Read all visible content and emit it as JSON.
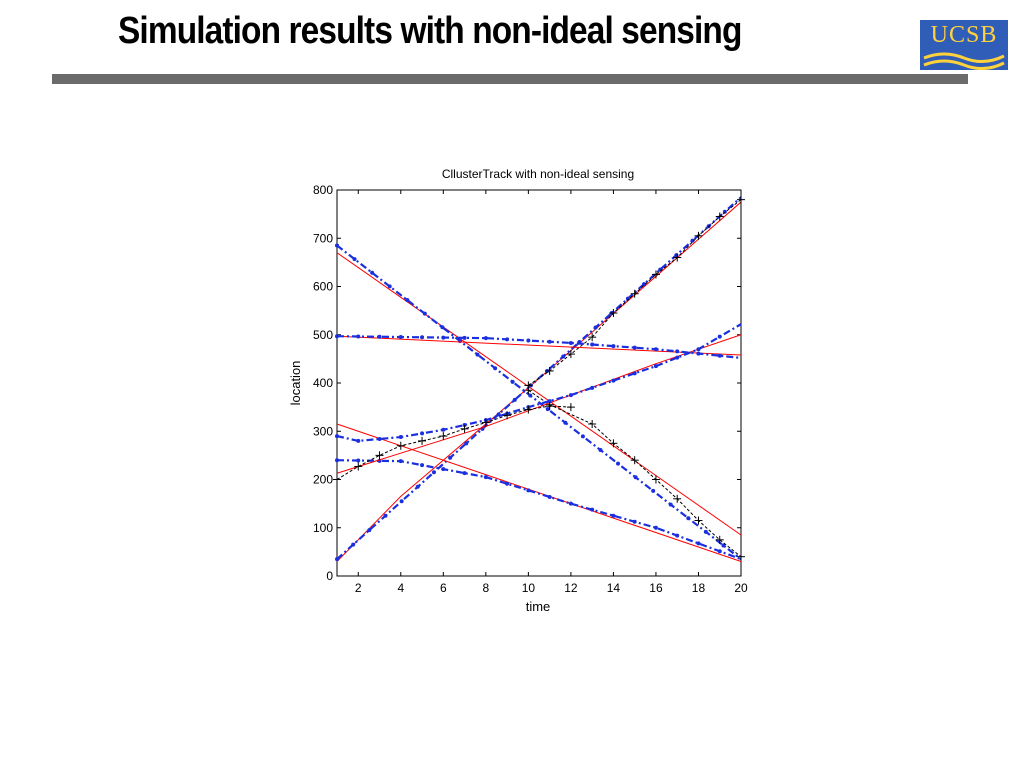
{
  "slide": {
    "title": "Simulation results with non-ideal sensing",
    "logo_text": "UCSB",
    "colors": {
      "rule": "#6b6b6b",
      "logo_bg": "#2f5db8",
      "logo_fg": "#ffd23c"
    }
  },
  "chart_data": {
    "type": "line",
    "title": "CllusterTrack with non-ideal sensing",
    "xlabel": "time",
    "ylabel": "location",
    "xlim": [
      1,
      20
    ],
    "ylim": [
      0,
      800
    ],
    "xticks": [
      2,
      4,
      6,
      8,
      10,
      12,
      14,
      16,
      18,
      20
    ],
    "yticks": [
      0,
      100,
      200,
      300,
      400,
      500,
      600,
      700,
      800
    ],
    "grid": false,
    "legend": "none",
    "series": [
      {
        "style": "true",
        "color": "#ff0000",
        "x": [
          1,
          20
        ],
        "y": [
          670,
          85
        ]
      },
      {
        "style": "estimate",
        "color": "#1a2fe0",
        "x": [
          1,
          20
        ],
        "y": [
          685,
          35
        ]
      },
      {
        "style": "track",
        "color": "#000000",
        "x": [
          10,
          11,
          13,
          14,
          15,
          16,
          17,
          18,
          19,
          20
        ],
        "y": [
          385,
          355,
          315,
          275,
          240,
          200,
          160,
          115,
          75,
          40
        ]
      },
      {
        "style": "true",
        "color": "#ff0000",
        "x": [
          1,
          4,
          10,
          20
        ],
        "y": [
          30,
          165,
          390,
          775
        ]
      },
      {
        "style": "estimate",
        "color": "#1a2fe0",
        "x": [
          1,
          20
        ],
        "y": [
          35,
          785
        ]
      },
      {
        "style": "track",
        "color": "#000000",
        "x": [
          10,
          11,
          12,
          13,
          14,
          15,
          16,
          17,
          18,
          19,
          20
        ],
        "y": [
          395,
          425,
          460,
          495,
          545,
          585,
          625,
          660,
          705,
          745,
          780
        ]
      },
      {
        "style": "true",
        "color": "#ff0000",
        "x": [
          1,
          20
        ],
        "y": [
          497,
          458
        ]
      },
      {
        "style": "estimate",
        "color": "#1a2fe0",
        "x": [
          1,
          8,
          12,
          16,
          20
        ],
        "y": [
          497,
          493,
          483,
          470,
          452
        ]
      },
      {
        "style": "true",
        "color": "#ff0000",
        "x": [
          1,
          20
        ],
        "y": [
          315,
          30
        ]
      },
      {
        "style": "estimate",
        "color": "#1a2fe0",
        "x": [
          1,
          4,
          8,
          12,
          16,
          20
        ],
        "y": [
          240,
          238,
          205,
          150,
          100,
          35
        ]
      },
      {
        "style": "true",
        "color": "#ff0000",
        "x": [
          1,
          8,
          12,
          16,
          20
        ],
        "y": [
          213,
          310,
          375,
          440,
          500
        ]
      },
      {
        "style": "estimate",
        "color": "#1a2fe0",
        "x": [
          1,
          2,
          4,
          6,
          8,
          10,
          12,
          14,
          16,
          18,
          20
        ],
        "y": [
          290,
          280,
          288,
          303,
          323,
          350,
          375,
          405,
          435,
          470,
          522
        ]
      },
      {
        "style": "track",
        "color": "#000000",
        "x": [
          1,
          2,
          3,
          4,
          5,
          6,
          7,
          8,
          9,
          10,
          11,
          12
        ],
        "y": [
          200,
          227,
          250,
          270,
          280,
          290,
          305,
          318,
          333,
          345,
          352,
          350
        ]
      }
    ]
  }
}
